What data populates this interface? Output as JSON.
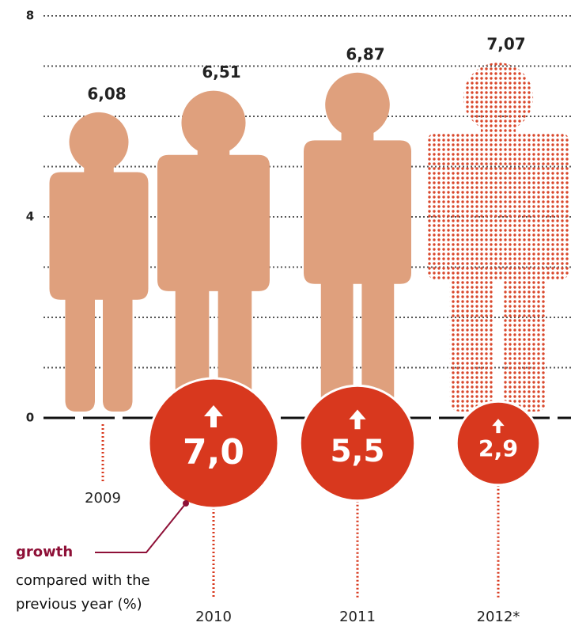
{
  "chart_data": {
    "type": "pictogram",
    "categories": [
      "2009",
      "2010",
      "2011",
      "2012*"
    ],
    "values": [
      6.08,
      6.51,
      6.87,
      7.07
    ],
    "value_labels": [
      "6,08",
      "6,51",
      "6,87",
      "7,07"
    ],
    "color": "#dfa07d",
    "projected": [
      false,
      false,
      false,
      true
    ],
    "projected_color": "#d9472b",
    "ylim": [
      0,
      8
    ],
    "yticks": [
      0,
      4,
      8
    ],
    "minor_yticks": [
      1,
      2,
      3,
      5,
      6,
      7
    ],
    "grid": true,
    "growth": {
      "values": [
        null,
        7,
        5.5,
        2.9
      ],
      "value_labels": [
        null,
        "7,0",
        "5,5",
        "2,9"
      ],
      "color": "#d8381e"
    },
    "annotation": {
      "title": "growth",
      "text": [
        "compared with the",
        "previous year (%)"
      ],
      "color": "#8e1037"
    }
  }
}
